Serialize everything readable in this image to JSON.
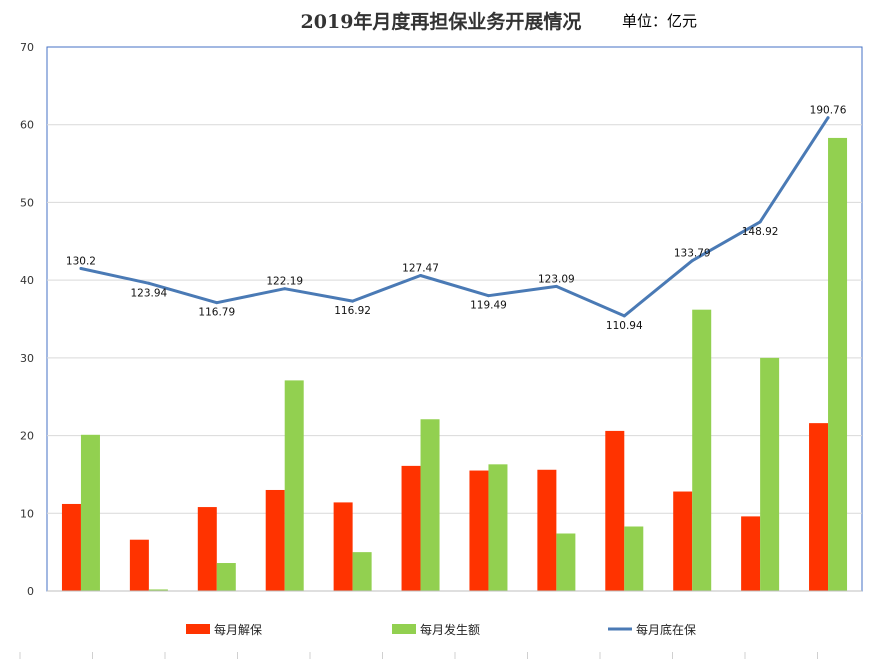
{
  "chart_data": {
    "type": "bar",
    "title": "2019年月度再担保业务开展情况",
    "unit_label": "单位：亿元",
    "ylim": [
      0,
      70
    ],
    "yticks": [
      0,
      10,
      20,
      30,
      40,
      50,
      60,
      70
    ],
    "grid": true,
    "legend_position": "bottom",
    "colors": {
      "release": "#ff3300",
      "issued": "#92d050",
      "balance": "#4a7ab5"
    },
    "series": [
      {
        "name": "每月解保",
        "kind": "bar",
        "values": [
          11.2,
          6.6,
          10.8,
          13.0,
          11.4,
          16.1,
          15.5,
          15.6,
          20.6,
          12.8,
          9.6,
          21.6
        ]
      },
      {
        "name": "每月发生额",
        "kind": "bar",
        "values": [
          20.1,
          0.2,
          3.6,
          27.1,
          5.0,
          22.1,
          16.3,
          7.4,
          8.3,
          36.2,
          30.0,
          58.3
        ]
      },
      {
        "name": "每月底在保",
        "kind": "line",
        "values": [
          130.2,
          123.94,
          116.79,
          122.19,
          116.92,
          127.47,
          119.49,
          123.09,
          110.94,
          133.79,
          148.92,
          190.76
        ],
        "plot_values": [
          41.5,
          39.6,
          37.1,
          38.9,
          37.3,
          40.6,
          38.0,
          39.2,
          35.4,
          42.5,
          47.5,
          60.9
        ],
        "labels": [
          "130.2",
          "123.94",
          "116.79",
          "122.19",
          "116.92",
          "127.47",
          "119.49",
          "123.09",
          "110.94",
          "133.79",
          "148.92",
          "190.76"
        ]
      }
    ]
  }
}
